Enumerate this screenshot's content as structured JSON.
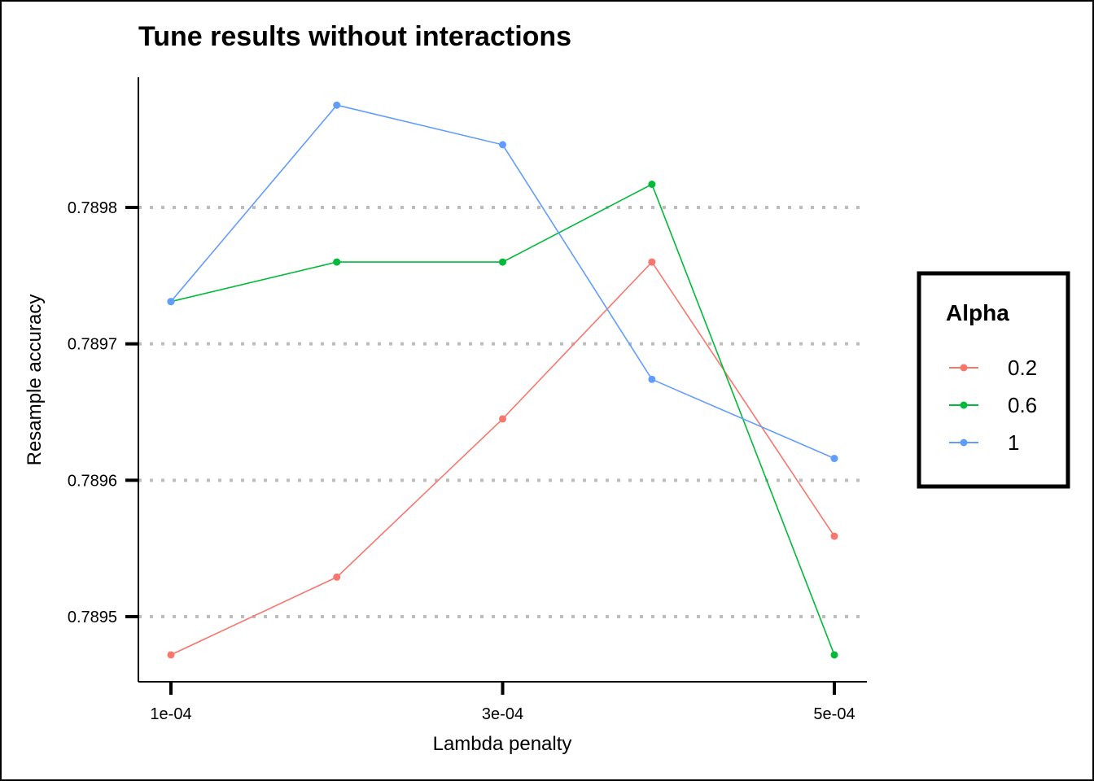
{
  "chart_data": {
    "type": "line",
    "title": "Tune results without interactions",
    "xlabel": "Lambda penalty",
    "ylabel": "Resample accuracy",
    "x_ticks": [
      {
        "value": 0.0001,
        "label": "1e-04"
      },
      {
        "value": 0.0003,
        "label": "3e-04"
      },
      {
        "value": 0.0005,
        "label": "5e-04"
      }
    ],
    "y_ticks": [
      {
        "value": 0.7895,
        "label": "0.7895"
      },
      {
        "value": 0.7896,
        "label": "0.7896"
      },
      {
        "value": 0.7897,
        "label": "0.7897"
      },
      {
        "value": 0.7898,
        "label": "0.7898"
      }
    ],
    "xlim": [
      8e-05,
      0.00052
    ],
    "ylim": [
      0.78945,
      0.7899
    ],
    "grid": "horizontal dotted",
    "legend": {
      "title": "Alpha",
      "position": "right"
    },
    "x": [
      0.0001,
      0.0002,
      0.0003,
      0.00039,
      0.0005
    ],
    "series": [
      {
        "name": "0.2",
        "color": "#F8766D",
        "values": [
          0.789472,
          0.789529,
          0.789645,
          0.78976,
          0.789559
        ]
      },
      {
        "name": "0.6",
        "color": "#00BA38",
        "values": [
          0.789731,
          0.78976,
          0.78976,
          0.789817,
          0.789472
        ]
      },
      {
        "name": "1",
        "color": "#619CFF",
        "values": [
          0.789731,
          0.789875,
          0.789846,
          0.789674,
          0.789616
        ]
      }
    ]
  }
}
